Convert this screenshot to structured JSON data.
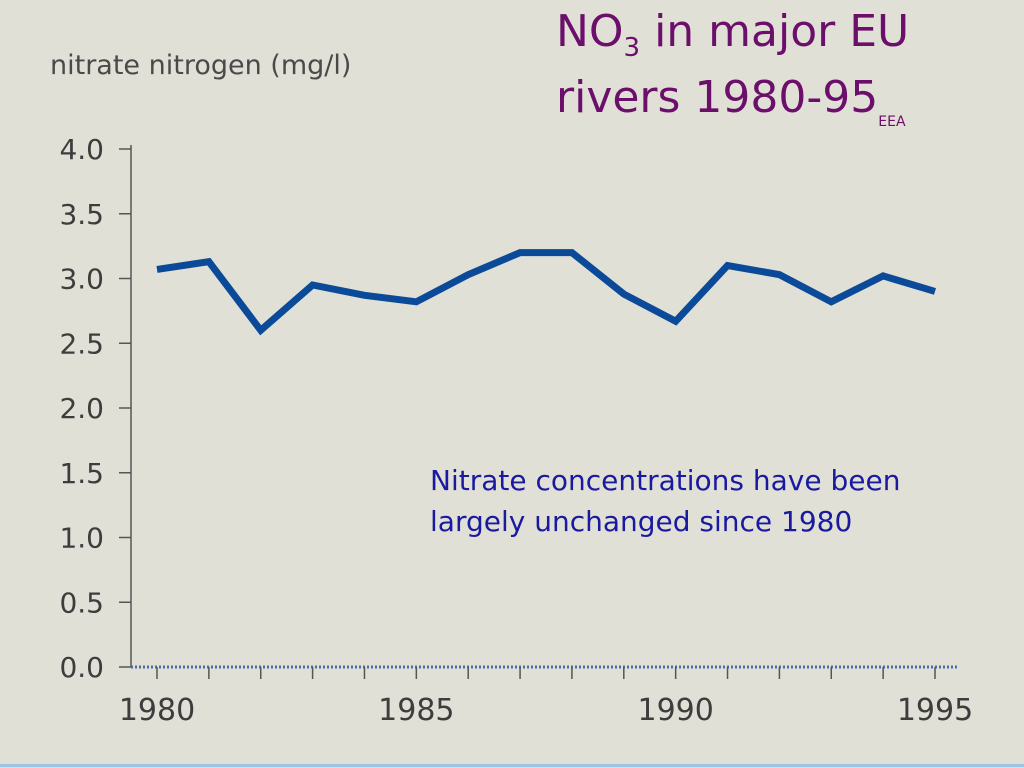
{
  "slide": {
    "title": {
      "line1_main": "NO",
      "line1_sub": "3",
      "line1_rest": " in major EU",
      "line2_main": "rivers 1980-95",
      "source": "EEA"
    },
    "ylabel": "nitrate nitrogen (mg/l)",
    "note": "Nitrate concentrations have been largely unchanged since 1980"
  },
  "colors": {
    "title": "#6b0f6b",
    "note": "#1a1aa0",
    "line": "#0a4a98",
    "axis": "#555555",
    "background": "#e1e0d6"
  },
  "chart_data": {
    "type": "line",
    "title": "",
    "xlabel": "",
    "ylabel": "nitrate nitrogen (mg/l)",
    "x": [
      1980,
      1981,
      1982,
      1983,
      1984,
      1985,
      1986,
      1987,
      1988,
      1989,
      1990,
      1991,
      1992,
      1993,
      1994,
      1995
    ],
    "series": [
      {
        "values": [
          3.07,
          3.13,
          2.6,
          2.95,
          2.87,
          2.82,
          3.03,
          3.2,
          3.2,
          2.88,
          2.67,
          3.1,
          3.03,
          2.82,
          3.02,
          2.9
        ]
      }
    ],
    "xlim": [
      1980,
      1995
    ],
    "ylim": [
      0,
      4.0
    ],
    "x_ticks": [
      1980,
      1985,
      1990,
      1995
    ],
    "y_ticks": [
      "0.0",
      "0.5",
      "1.0",
      "1.5",
      "2.0",
      "2.5",
      "3.0",
      "3.5",
      "4.0"
    ],
    "grid": false,
    "legend": "none"
  }
}
